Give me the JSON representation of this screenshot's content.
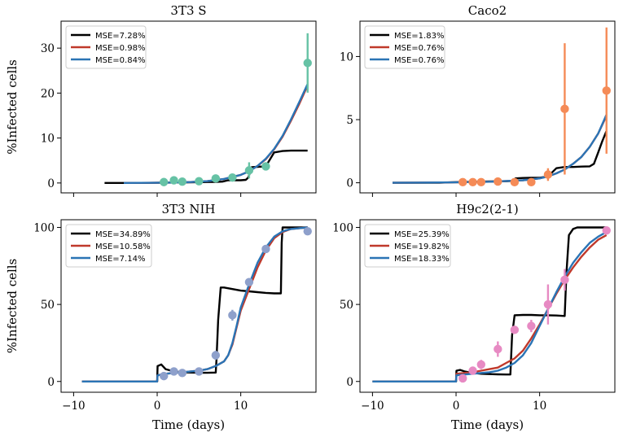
{
  "figure": {
    "xlabel": "Time (days)",
    "ylabel": "%Infected cells"
  },
  "chart_data": [
    {
      "type": "line",
      "title": "3T3 S",
      "xlim": [
        -11.5,
        19
      ],
      "ylim": [
        -2.2,
        36
      ],
      "xticks": [
        -10,
        0,
        10
      ],
      "yticks": [
        0,
        10,
        20,
        30
      ],
      "show_xticklabels": false,
      "show_ylabel": true,
      "point_color": "#66c2a5",
      "legend": {
        "position": "top-left",
        "entries": [
          "MSE=7.28%",
          "MSE=0.98%",
          "MSE=0.84%"
        ]
      },
      "series": [
        {
          "name": "MSE=7.28%",
          "color": "#000000",
          "x": [
            -6.3,
            -2,
            0,
            2,
            4,
            6,
            7,
            7.8,
            8.5,
            9,
            10,
            10.6,
            10.9,
            11.3,
            12,
            13,
            14,
            15,
            16,
            17,
            18
          ],
          "y": [
            0,
            0,
            0.05,
            0.1,
            0.15,
            0.2,
            0.22,
            0.3,
            0.6,
            0.6,
            0.6,
            0.7,
            1.2,
            3.5,
            3.6,
            3.7,
            6.8,
            7.1,
            7.2,
            7.2,
            7.2
          ]
        },
        {
          "name": "MSE=0.98%",
          "color": "#c0392b",
          "x": [
            -4,
            0,
            2,
            4,
            6,
            8,
            10,
            11,
            12,
            13,
            14,
            15,
            16,
            17,
            18
          ],
          "y": [
            0,
            0.05,
            0.1,
            0.2,
            0.4,
            0.9,
            1.8,
            2.6,
            3.8,
            5.3,
            7.5,
            10.3,
            13.8,
            17.6,
            21.7
          ]
        },
        {
          "name": "MSE=0.84%",
          "color": "#2a74b5",
          "x": [
            -4,
            0,
            2,
            4,
            6,
            8,
            10,
            11,
            12,
            13,
            14,
            15,
            16,
            17,
            18
          ],
          "y": [
            0,
            0.05,
            0.1,
            0.2,
            0.4,
            0.9,
            1.8,
            2.6,
            3.8,
            5.4,
            7.6,
            10.5,
            14.1,
            18,
            22
          ]
        }
      ],
      "points": [
        {
          "x": 0.8,
          "y": 0.2,
          "err": 0.3
        },
        {
          "x": 2,
          "y": 0.6,
          "err": 0.3
        },
        {
          "x": 3,
          "y": 0.3,
          "err": 0.3
        },
        {
          "x": 5,
          "y": 0.4,
          "err": 0.3
        },
        {
          "x": 7,
          "y": 1,
          "err": 0.4
        },
        {
          "x": 9,
          "y": 1.2,
          "err": 0.4
        },
        {
          "x": 11,
          "y": 2.8,
          "err": 1.8
        },
        {
          "x": 13,
          "y": 3.7,
          "err": 0.8
        },
        {
          "x": 18,
          "y": 26.7,
          "err": 6.6
        }
      ]
    },
    {
      "type": "line",
      "title": "Caco2",
      "xlim": [
        -11.5,
        19
      ],
      "ylim": [
        -0.8,
        12.8
      ],
      "xticks": [
        -10,
        0,
        10
      ],
      "yticks": [
        0,
        5,
        10
      ],
      "show_xticklabels": false,
      "show_ylabel": false,
      "point_color": "#f58b57",
      "legend": {
        "position": "top-left",
        "entries": [
          "MSE=1.83%",
          "MSE=0.76%",
          "MSE=0.76%"
        ]
      },
      "series": [
        {
          "name": "MSE=1.83%",
          "color": "#000000",
          "x": [
            -7.6,
            -2,
            0,
            2,
            4,
            6,
            7,
            7.1,
            8,
            9,
            10,
            11,
            12,
            13,
            14,
            15,
            16,
            16.5,
            17,
            17.5,
            18
          ],
          "y": [
            0,
            0,
            0.05,
            0.08,
            0.1,
            0.12,
            0.15,
            0.35,
            0.38,
            0.4,
            0.4,
            0.5,
            1.15,
            1.25,
            1.25,
            1.28,
            1.3,
            1.5,
            2.4,
            3.3,
            4.1
          ]
        },
        {
          "name": "MSE=0.76%",
          "color": "#c0392b",
          "x": [
            -7.6,
            0,
            4,
            8,
            10,
            11,
            12,
            13,
            14,
            15,
            16,
            17,
            18
          ],
          "y": [
            0,
            0.03,
            0.08,
            0.2,
            0.35,
            0.5,
            0.75,
            1.05,
            1.5,
            2.05,
            2.85,
            3.9,
            5.3
          ]
        },
        {
          "name": "MSE=0.76%",
          "color": "#2a74b5",
          "x": [
            -7.6,
            0,
            4,
            8,
            10,
            11,
            12,
            13,
            14,
            15,
            16,
            17,
            18
          ],
          "y": [
            0,
            0.03,
            0.08,
            0.2,
            0.35,
            0.5,
            0.75,
            1.05,
            1.5,
            2.05,
            2.85,
            3.9,
            5.4
          ]
        }
      ],
      "points": [
        {
          "x": 0.8,
          "y": 0.05,
          "err": 0.1
        },
        {
          "x": 2,
          "y": 0.05,
          "err": 0.1
        },
        {
          "x": 3,
          "y": 0.05,
          "err": 0.1
        },
        {
          "x": 5,
          "y": 0.1,
          "err": 0.1
        },
        {
          "x": 7,
          "y": 0.05,
          "err": 0.1
        },
        {
          "x": 9,
          "y": 0.05,
          "err": 0.1
        },
        {
          "x": 11,
          "y": 0.65,
          "err": 0.5
        },
        {
          "x": 13,
          "y": 5.85,
          "err": 5.2
        },
        {
          "x": 18,
          "y": 7.3,
          "err": 5
        }
      ]
    },
    {
      "type": "line",
      "title": "3T3 NIH",
      "xlim": [
        -11.5,
        19
      ],
      "ylim": [
        -7,
        105
      ],
      "xticks": [
        -10,
        0,
        10
      ],
      "yticks": [
        0,
        50,
        100
      ],
      "show_xticklabels": true,
      "show_ylabel": true,
      "point_color": "#8ea0cb",
      "legend": {
        "position": "top-left",
        "entries": [
          "MSE=34.89%",
          "MSE=10.58%",
          "MSE=7.14%"
        ]
      },
      "series": [
        {
          "name": "MSE=34.89%",
          "color": "#000000",
          "x": [
            -9,
            0,
            0.05,
            0.5,
            1,
            2,
            3,
            4,
            5,
            6,
            7,
            7.1,
            7.3,
            7.6,
            8,
            9,
            10,
            11,
            12,
            13,
            14,
            14.8,
            14.9,
            15,
            16,
            17,
            18
          ],
          "y": [
            0,
            0,
            10,
            11,
            8,
            6.5,
            6,
            5.8,
            5.6,
            5.6,
            5.8,
            15,
            40,
            61,
            61,
            60,
            59,
            58.5,
            58,
            57.5,
            57.2,
            57.2,
            90,
            100,
            100,
            100,
            100
          ]
        },
        {
          "name": "MSE=10.58%",
          "color": "#c0392b",
          "x": [
            -9,
            0,
            0.05,
            1,
            2,
            3,
            4,
            5,
            6,
            7,
            8,
            8.5,
            9,
            9.5,
            10,
            11,
            12,
            13,
            14,
            15,
            16,
            17,
            18
          ],
          "y": [
            0,
            0,
            4,
            5,
            5.5,
            6,
            6.5,
            7,
            8,
            10,
            13,
            17,
            24,
            35,
            46,
            60,
            74,
            85,
            93,
            97,
            99,
            99.5,
            100
          ]
        },
        {
          "name": "MSE=7.14%",
          "color": "#2a74b5",
          "x": [
            -9,
            0,
            0.05,
            1,
            2,
            3,
            4,
            5,
            6,
            7,
            8,
            8.5,
            9,
            9.5,
            10,
            11,
            12,
            13,
            14,
            15,
            16,
            17,
            18
          ],
          "y": [
            0,
            0,
            4,
            5,
            5.5,
            6,
            6.5,
            7,
            8,
            10,
            13,
            17,
            25,
            36,
            48,
            63,
            77,
            87,
            94,
            97.5,
            99,
            99.5,
            100
          ]
        }
      ],
      "points": [
        {
          "x": 0.8,
          "y": 3.5,
          "err": 1.5
        },
        {
          "x": 2,
          "y": 6.5,
          "err": 1.5
        },
        {
          "x": 3,
          "y": 5.5,
          "err": 1.5
        },
        {
          "x": 5,
          "y": 6.5,
          "err": 1.5
        },
        {
          "x": 7,
          "y": 17,
          "err": 3
        },
        {
          "x": 9,
          "y": 43,
          "err": 3.5
        },
        {
          "x": 11,
          "y": 64.5,
          "err": 2
        },
        {
          "x": 13,
          "y": 86,
          "err": 2
        },
        {
          "x": 18,
          "y": 97.5,
          "err": 1.5
        }
      ]
    },
    {
      "type": "line",
      "title": "H9c2(2-1)",
      "xlim": [
        -11.5,
        19
      ],
      "ylim": [
        -7,
        105
      ],
      "xticks": [
        -10,
        0,
        10
      ],
      "yticks": [
        0,
        50,
        100
      ],
      "show_xticklabels": true,
      "show_ylabel": false,
      "point_color": "#e78ac3",
      "legend": {
        "position": "top-left",
        "entries": [
          "MSE=25.39%",
          "MSE=19.82%",
          "MSE=18.33%"
        ]
      },
      "series": [
        {
          "name": "MSE=25.39%",
          "color": "#000000",
          "x": [
            -10,
            0,
            0.05,
            0.5,
            1,
            2,
            3,
            4,
            5,
            6,
            6.5,
            6.7,
            7,
            8,
            9,
            10,
            11,
            12,
            13,
            13.2,
            13.5,
            14,
            14.5,
            15,
            16,
            17,
            18
          ],
          "y": [
            0,
            0,
            7,
            7.5,
            6.5,
            5.5,
            5,
            4.8,
            4.6,
            4.5,
            4.5,
            30,
            43,
            43.2,
            43.2,
            43,
            43,
            42.8,
            42.5,
            70,
            95,
            99,
            100,
            100,
            100,
            100,
            100
          ]
        },
        {
          "name": "MSE=19.82%",
          "color": "#c0392b",
          "x": [
            -10,
            0,
            0.05,
            1,
            2,
            3,
            4,
            5,
            6,
            7,
            8,
            9,
            10,
            11,
            12,
            13,
            14,
            15,
            16,
            17,
            18
          ],
          "y": [
            0,
            0,
            5,
            5.5,
            6,
            7,
            8,
            9,
            12,
            15,
            20,
            28,
            37,
            47,
            57,
            66,
            74,
            81,
            87,
            92,
            95
          ]
        },
        {
          "name": "MSE=18.33%",
          "color": "#2a74b5",
          "x": [
            -10,
            0,
            0.05,
            1,
            2,
            3,
            4,
            5,
            6,
            7,
            8,
            9,
            10,
            11,
            12,
            13,
            14,
            15,
            16,
            17,
            18
          ],
          "y": [
            0,
            0,
            4,
            4.5,
            5,
            5.5,
            6,
            7,
            9,
            12,
            17,
            25,
            36,
            47,
            58,
            68,
            77,
            84,
            90,
            94,
            97
          ]
        }
      ],
      "points": [
        {
          "x": 0.8,
          "y": 2,
          "err": 2
        },
        {
          "x": 2,
          "y": 7,
          "err": 2
        },
        {
          "x": 3,
          "y": 11,
          "err": 3
        },
        {
          "x": 5,
          "y": 21,
          "err": 5
        },
        {
          "x": 7,
          "y": 33.5,
          "err": 2.5
        },
        {
          "x": 9,
          "y": 36,
          "err": 4
        },
        {
          "x": 11,
          "y": 50,
          "err": 13
        },
        {
          "x": 13,
          "y": 66,
          "err": 7
        },
        {
          "x": 18,
          "y": 98,
          "err": 2
        }
      ]
    }
  ]
}
